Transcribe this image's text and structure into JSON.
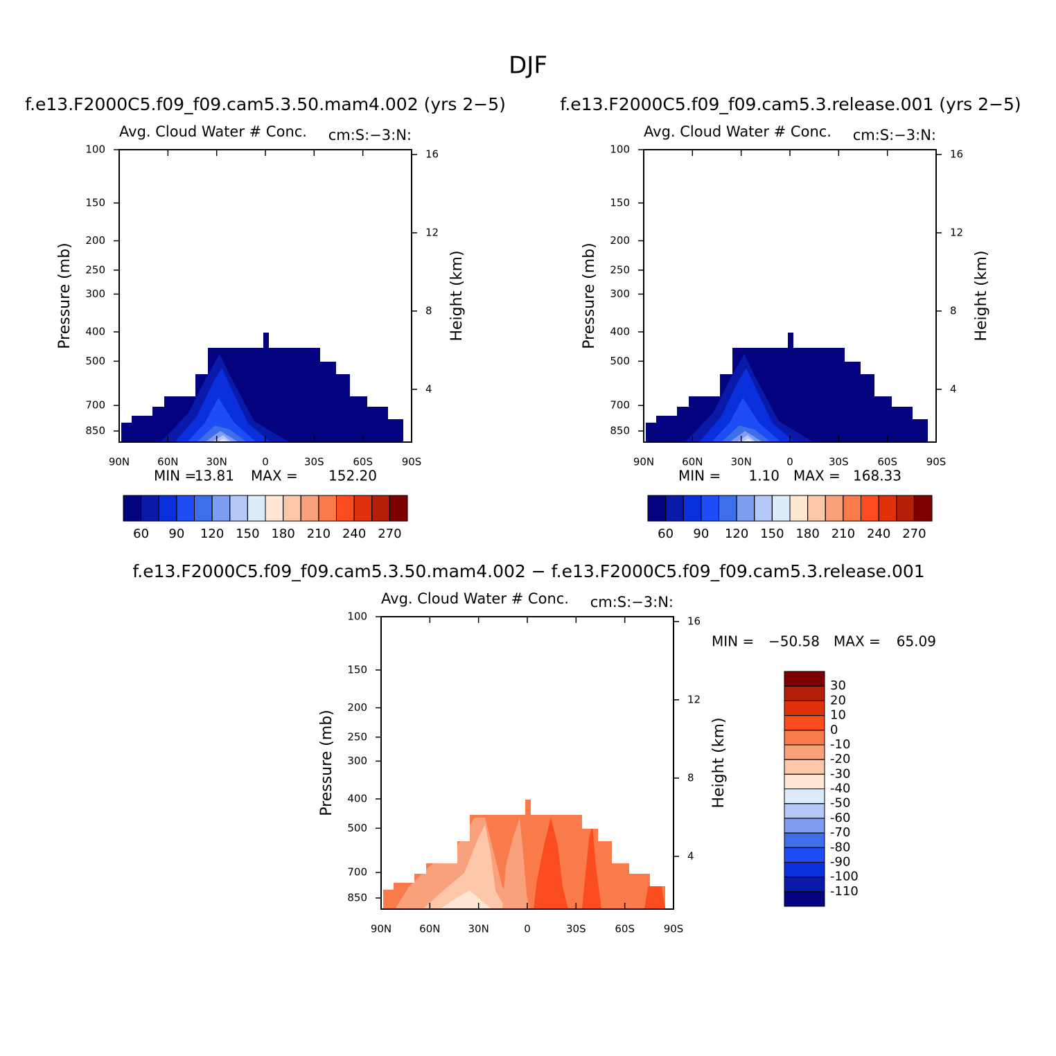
{
  "title": "DJF",
  "chart_data": [
    {
      "type": "contour",
      "title": "f.e13.F2000C5.f09_f09.cam5.3.50.mam4.002 (yrs 2−5)",
      "subtitle": "Avg. Cloud Water # Conc.",
      "units": "cm:S:−3:N:",
      "ylabel": "Pressure (mb)",
      "y2label": "Height (km)",
      "xlim": [
        90,
        -90
      ],
      "xticks": [
        {
          "value": 90,
          "label": "90N"
        },
        {
          "value": 60,
          "label": "60N"
        },
        {
          "value": 30,
          "label": "30N"
        },
        0,
        {
          "value": -30,
          "label": "30S"
        },
        {
          "value": -60,
          "label": "60S"
        },
        {
          "value": -90,
          "label": "90S"
        }
      ],
      "ylim": [
        100,
        925
      ],
      "ylog": true,
      "yticks": [
        100,
        150,
        200,
        250,
        300,
        400,
        500,
        700,
        850
      ],
      "y2lim": [
        1.3,
        16.25
      ],
      "y2ticks": [
        4,
        8,
        12,
        16
      ],
      "stats": {
        "names": [
          "MIN =",
          "MAX ="
        ],
        "values": [
          13.81,
          152.2
        ],
        "value_labels": [
          "13.81",
          "152.20"
        ]
      },
      "colorbar": {
        "orientation": "horizontal",
        "label_stride": 2,
        "levels": [
          60,
          75,
          90,
          105,
          120,
          135,
          150,
          165,
          180,
          195,
          210,
          225,
          240,
          255,
          270
        ],
        "colors": [
          "#03037f",
          "#0a1aa8",
          "#0a2fdc",
          "#1e4cf5",
          "#3f6fe8",
          "#7f9df2",
          "#b5c9f8",
          "#dcebfa",
          "#ffe7d3",
          "#fdc8a9",
          "#f9a17c",
          "#f97a4b",
          "#fa4c1f",
          "#df320c",
          "#b31f0b",
          "#7d0000"
        ]
      }
    },
    {
      "type": "contour",
      "title": "f.e13.F2000C5.f09_f09.cam5.3.release.001 (yrs 2−5)",
      "subtitle": "Avg. Cloud Water # Conc.",
      "units": "cm:S:−3:N:",
      "ylabel": "Pressure (mb)",
      "y2label": "Height (km)",
      "xlim": [
        90,
        -90
      ],
      "xticks": [
        {
          "value": 90,
          "label": "90N"
        },
        {
          "value": 60,
          "label": "60N"
        },
        {
          "value": 30,
          "label": "30N"
        },
        0,
        {
          "value": -30,
          "label": "30S"
        },
        {
          "value": -60,
          "label": "60S"
        },
        {
          "value": -90,
          "label": "90S"
        }
      ],
      "ylim": [
        100,
        925
      ],
      "ylog": true,
      "yticks": [
        100,
        150,
        200,
        250,
        300,
        400,
        500,
        700,
        850
      ],
      "y2lim": [
        1.3,
        16.25
      ],
      "y2ticks": [
        4,
        8,
        12,
        16
      ],
      "stats": {
        "names": [
          "MIN =",
          "MAX ="
        ],
        "values": [
          1.1,
          168.33
        ],
        "value_labels": [
          "1.10",
          "168.33"
        ]
      },
      "colorbar": {
        "orientation": "horizontal",
        "label_stride": 2,
        "levels": [
          60,
          75,
          90,
          105,
          120,
          135,
          150,
          165,
          180,
          195,
          210,
          225,
          240,
          255,
          270
        ],
        "colors": [
          "#03037f",
          "#0a1aa8",
          "#0a2fdc",
          "#1e4cf5",
          "#3f6fe8",
          "#7f9df2",
          "#b5c9f8",
          "#dcebfa",
          "#ffe7d3",
          "#fdc8a9",
          "#f9a17c",
          "#f97a4b",
          "#fa4c1f",
          "#df320c",
          "#b31f0b",
          "#7d0000"
        ]
      }
    },
    {
      "type": "contour",
      "title": "f.e13.F2000C5.f09_f09.cam5.3.50.mam4.002 − f.e13.F2000C5.f09_f09.cam5.3.release.001",
      "subtitle": "Avg. Cloud Water # Conc.",
      "units": "cm:S:−3:N:",
      "ylabel": "Pressure (mb)",
      "y2label": "Height (km)",
      "xlim": [
        90,
        -90
      ],
      "xticks": [
        {
          "value": 90,
          "label": "90N"
        },
        {
          "value": 60,
          "label": "60N"
        },
        {
          "value": 30,
          "label": "30N"
        },
        0,
        {
          "value": -30,
          "label": "30S"
        },
        {
          "value": -60,
          "label": "60S"
        },
        {
          "value": -90,
          "label": "90S"
        }
      ],
      "ylim": [
        100,
        925
      ],
      "ylog": true,
      "yticks": [
        100,
        150,
        200,
        250,
        300,
        400,
        500,
        700,
        850
      ],
      "y2lim": [
        1.3,
        16.25
      ],
      "y2ticks": [
        4,
        8,
        12,
        16
      ],
      "stats": {
        "names": [
          "MIN =",
          "MAX ="
        ],
        "values": [
          -50.58,
          65.09
        ],
        "value_labels": [
          "−50.58",
          "65.09"
        ]
      },
      "colorbar": {
        "orientation": "vertical",
        "levels": [
          -110,
          -100,
          -90,
          -80,
          -70,
          -60,
          -50,
          -40,
          -30,
          -20,
          -10,
          0,
          10,
          20,
          30
        ],
        "colors": [
          "#03037f",
          "#0a1aa8",
          "#0a2fdc",
          "#1e4cf5",
          "#3f6fe8",
          "#7f9df2",
          "#b5c9f8",
          "#dcebfa",
          "#ffe7d3",
          "#fdc8a9",
          "#f9a17c",
          "#f97a4b",
          "#fa4c1f",
          "#df320c",
          "#b31f0b",
          "#7d0000"
        ]
      }
    }
  ]
}
